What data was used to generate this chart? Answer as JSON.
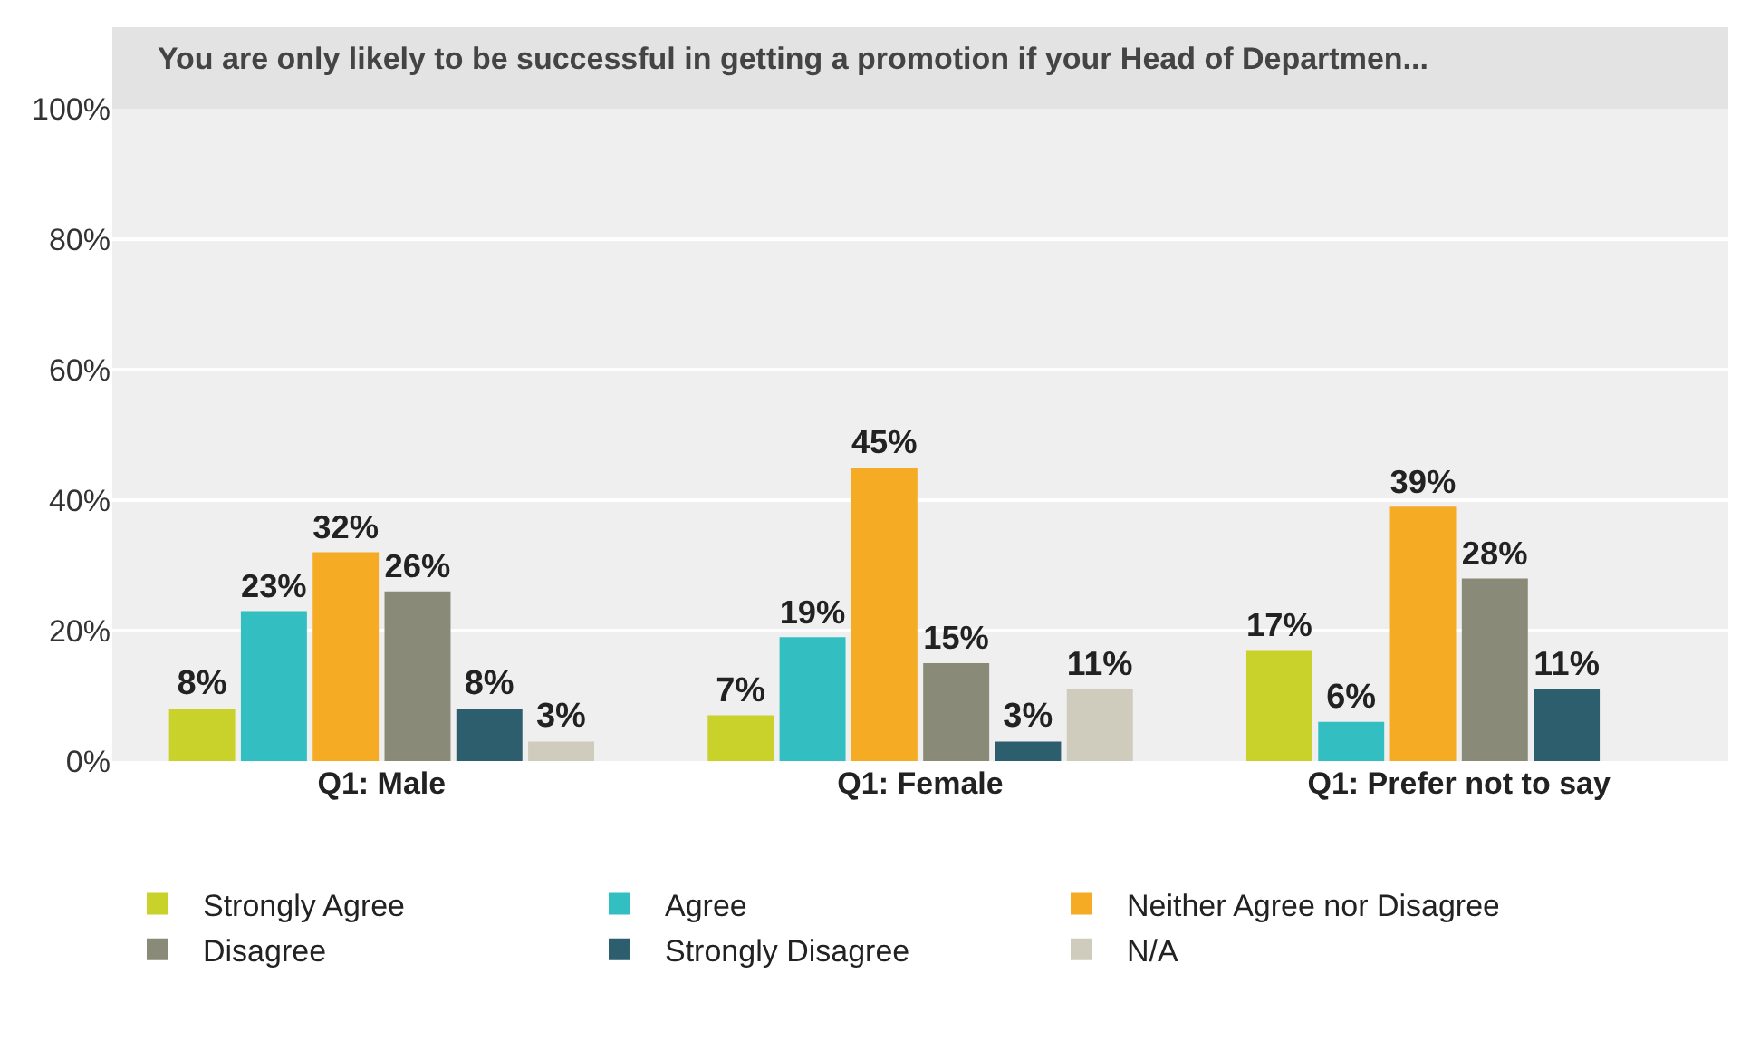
{
  "chart_data": {
    "type": "bar",
    "title": "You are only likely to be successful in getting a promotion if your Head of Departmen...",
    "categories": [
      "Q1: Male",
      "Q1: Female",
      "Q1: Prefer not to say"
    ],
    "series": [
      {
        "name": "Strongly Agree",
        "color": "#c9d22b",
        "values": [
          8,
          7,
          17
        ],
        "value_labels": [
          "8%",
          "7%",
          "17%"
        ]
      },
      {
        "name": "Agree",
        "color": "#33bfc1",
        "values": [
          23,
          19,
          6
        ],
        "value_labels": [
          "23%",
          "19%",
          "6%"
        ]
      },
      {
        "name": "Neither Agree nor Disagree",
        "color": "#f5ab24",
        "values": [
          32,
          45,
          39
        ],
        "value_labels": [
          "32%",
          "45%",
          "39%"
        ]
      },
      {
        "name": "Disagree",
        "color": "#8a8a78",
        "values": [
          26,
          15,
          28
        ],
        "value_labels": [
          "26%",
          "15%",
          "28%"
        ]
      },
      {
        "name": "Strongly Disagree",
        "color": "#2d5e6e",
        "values": [
          8,
          3,
          11
        ],
        "value_labels": [
          "8%",
          "3%",
          "11%"
        ]
      },
      {
        "name": "N/A",
        "color": "#cfcbbd",
        "values": [
          3,
          11,
          null
        ],
        "value_labels": [
          "3%",
          "11%",
          null
        ]
      }
    ],
    "ylim": [
      0,
      100
    ],
    "yticks": [
      {
        "value": 0,
        "label": "0%"
      },
      {
        "value": 20,
        "label": "20%"
      },
      {
        "value": 40,
        "label": "40%"
      },
      {
        "value": 60,
        "label": "60%"
      },
      {
        "value": 80,
        "label": "80%"
      },
      {
        "value": 100,
        "label": "100%"
      }
    ],
    "grid": "y",
    "legend": "bottom"
  }
}
